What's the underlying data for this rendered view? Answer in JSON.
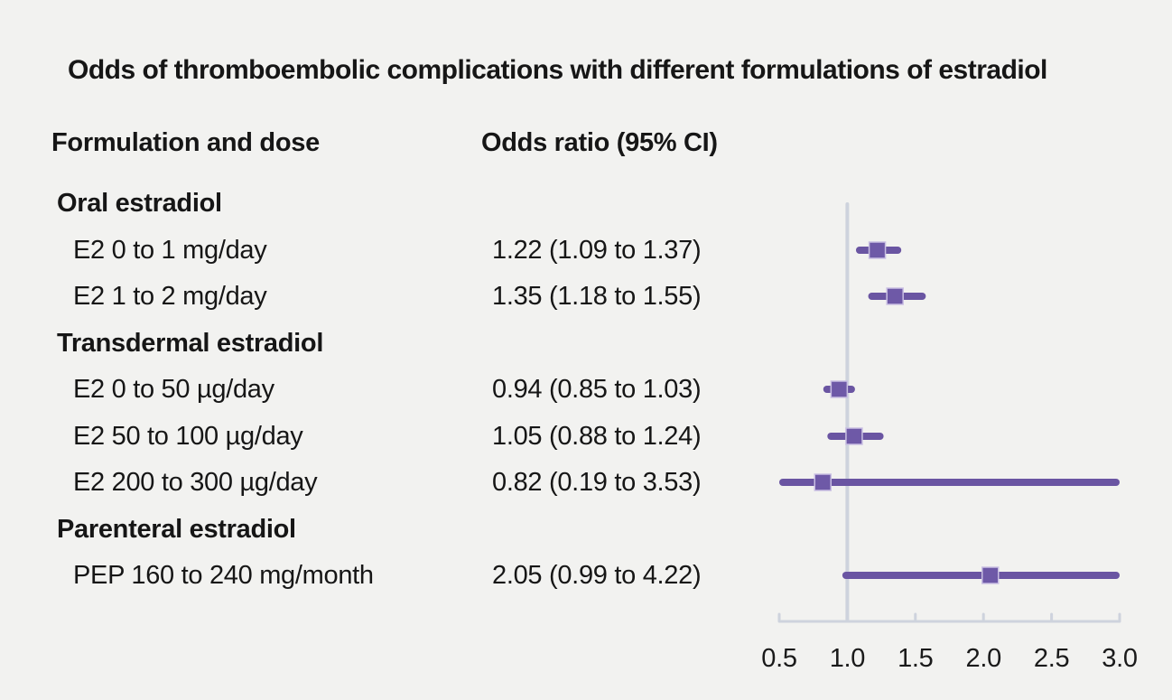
{
  "title": "Odds of thromboembolic complications with different formulations of estradiol",
  "columns": {
    "formulation": "Formulation and dose",
    "odds_ratio": "Odds ratio (95% CI)"
  },
  "colors": {
    "background": "#f2f2f0",
    "text": "#161616",
    "ci_line": "#6a55a2",
    "marker_fill": "#6e59a7",
    "marker_edge": "#c9bfe3",
    "axis": "#ced3dd"
  },
  "chart_data": {
    "type": "forest",
    "title": "Odds of thromboembolic complications with different formulations of estradiol",
    "xlabel": "",
    "ylabel": "",
    "xlim": [
      0.5,
      3.0
    ],
    "reference_line": 1.0,
    "grid": false,
    "x_ticks": [
      0.5,
      1.0,
      1.5,
      2.0,
      2.5,
      3.0
    ],
    "x_tick_labels": [
      "0.5",
      "1.0",
      "1.5",
      "2.0",
      "2.5",
      "3.0"
    ],
    "rows": [
      {
        "type": "group",
        "label": "Oral estradiol"
      },
      {
        "type": "item",
        "label": "E2 0 to 1 mg/day",
        "value_label": "1.22 (1.09 to 1.37)",
        "or": 1.22,
        "ci_low": 1.09,
        "ci_high": 1.37
      },
      {
        "type": "item",
        "label": "E2 1 to 2 mg/day",
        "value_label": "1.35 (1.18 to 1.55)",
        "or": 1.35,
        "ci_low": 1.18,
        "ci_high": 1.55
      },
      {
        "type": "group",
        "label": "Transdermal estradiol"
      },
      {
        "type": "item",
        "label": "E2 0 to 50 µg/day",
        "value_label": "0.94 (0.85 to 1.03)",
        "or": 0.94,
        "ci_low": 0.85,
        "ci_high": 1.03
      },
      {
        "type": "item",
        "label": "E2 50 to 100 µg/day",
        "value_label": "1.05 (0.88 to 1.24)",
        "or": 1.05,
        "ci_low": 0.88,
        "ci_high": 1.24
      },
      {
        "type": "item",
        "label": "E2 200 to 300 µg/day",
        "value_label": "0.82 (0.19 to 3.53)",
        "or": 0.82,
        "ci_low": 0.19,
        "ci_high": 3.53
      },
      {
        "type": "group",
        "label": "Parenteral estradiol"
      },
      {
        "type": "item",
        "label": "PEP 160 to 240 mg/month",
        "value_label": "2.05 (0.99 to 4.22)",
        "or": 2.05,
        "ci_low": 0.99,
        "ci_high": 4.22
      }
    ]
  }
}
